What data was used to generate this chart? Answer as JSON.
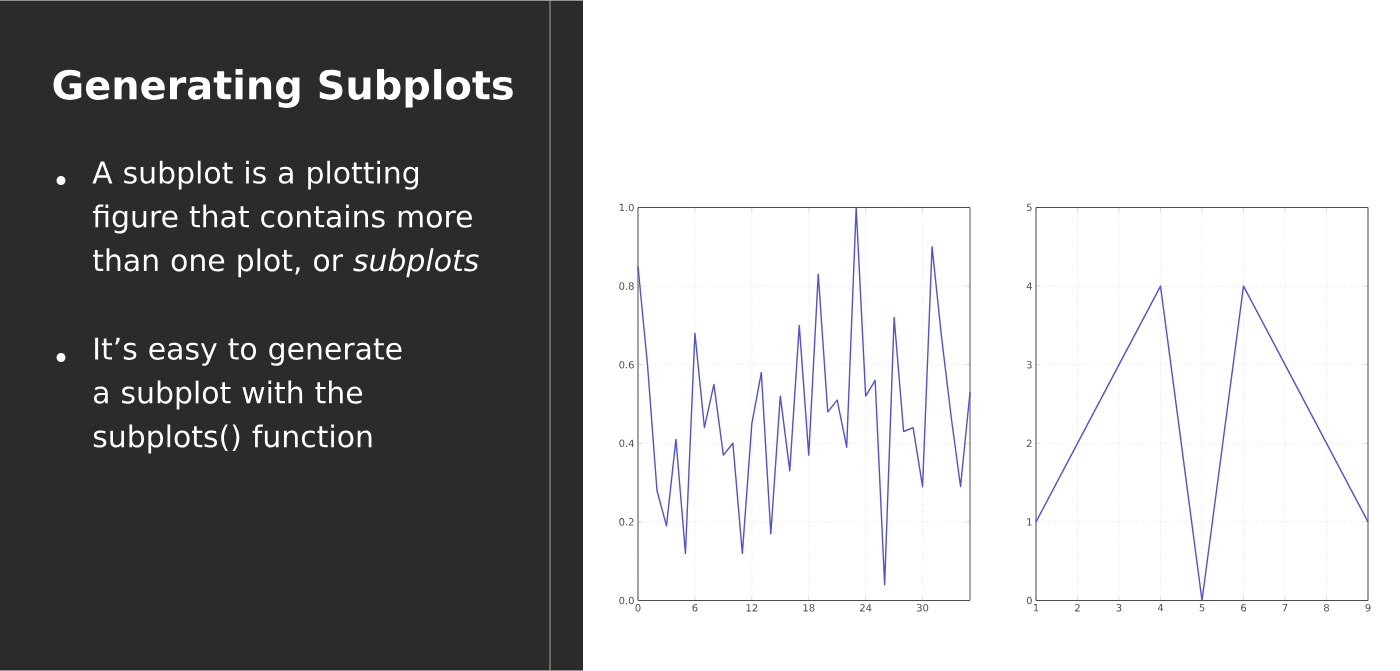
{
  "chart_data": [
    {
      "type": "other",
      "title": "Generating Subplots",
      "annotations": [
        "A subplot is a plotting figure that contains more than one plot, or *subplots*",
        "It’s easy to generate a subplot with the subplots() function"
      ]
    },
    {
      "type": "line",
      "x": [
        0,
        1,
        2,
        3,
        4,
        5,
        6,
        7,
        8,
        9,
        10,
        11,
        12,
        13,
        14,
        15,
        16,
        17,
        18,
        19,
        20,
        21,
        22,
        23,
        24,
        25,
        26,
        27,
        28,
        29,
        30,
        31,
        32,
        33,
        34,
        35
      ],
      "values": [
        0.85,
        0.6,
        0.28,
        0.19,
        0.41,
        0.12,
        0.68,
        0.44,
        0.55,
        0.37,
        0.4,
        0.12,
        0.45,
        0.58,
        0.17,
        0.52,
        0.33,
        0.7,
        0.37,
        0.83,
        0.48,
        0.51,
        0.39,
        1.0,
        0.52,
        0.56,
        0.04,
        0.72,
        0.43,
        0.44,
        0.29,
        0.9,
        0.67,
        0.47,
        0.29,
        0.53
      ],
      "color": "#5050d8",
      "xlim": [
        0,
        35
      ],
      "ylim": [
        0,
        1
      ],
      "xticks": [
        0,
        6,
        12,
        18,
        24,
        30
      ],
      "yticks": [
        {
          "value": 0,
          "label": "0.0"
        },
        0.2,
        0.4,
        0.6,
        0.8,
        {
          "value": 1,
          "label": "1.0"
        }
      ],
      "grid": true
    },
    {
      "type": "line",
      "x": [
        1,
        2,
        3,
        4,
        5,
        6,
        7,
        8,
        9
      ],
      "values": [
        1,
        2,
        3,
        4,
        0,
        4,
        3,
        2,
        1
      ],
      "color": "#5050d8",
      "xlim": [
        1,
        9
      ],
      "ylim": [
        0,
        5
      ],
      "xticks": [
        1,
        2,
        3,
        4,
        5,
        6,
        7,
        8,
        9
      ],
      "yticks": [
        0,
        1,
        2,
        3,
        4,
        5
      ],
      "grid": true
    }
  ]
}
